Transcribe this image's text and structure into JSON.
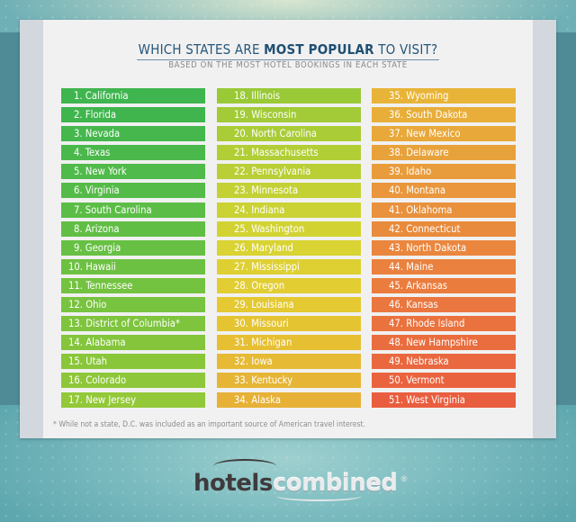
{
  "header": {
    "title_prefix": "WHICH STATES ARE ",
    "title_emphasis": "MOST POPULAR",
    "title_suffix": " TO VISIT?",
    "subtitle": "BASED ON THE MOST HOTEL BOOKINGS IN EACH STATE"
  },
  "columns": [
    {
      "items": [
        {
          "label": "1. California",
          "color": "#3fb54f"
        },
        {
          "label": "2. Florida",
          "color": "#40b54e"
        },
        {
          "label": "3. Nevada",
          "color": "#45b74c"
        },
        {
          "label": "4. Texas",
          "color": "#4ab84b"
        },
        {
          "label": "5. New York",
          "color": "#50ba4a"
        },
        {
          "label": "6. Virginia",
          "color": "#55bb48"
        },
        {
          "label": "7. South Carolina",
          "color": "#5bbd46"
        },
        {
          "label": "8. Arizona",
          "color": "#61be45"
        },
        {
          "label": "9. Georgia",
          "color": "#67c043"
        },
        {
          "label": "10. Hawaii",
          "color": "#6dc142"
        },
        {
          "label": "11. Tennessee",
          "color": "#73c240"
        },
        {
          "label": "12. Ohio",
          "color": "#78c33f"
        },
        {
          "label": "13. District of Columbia*",
          "color": "#7ec43d"
        },
        {
          "label": "14. Alabama",
          "color": "#84c53c"
        },
        {
          "label": "15. Utah",
          "color": "#89c63a"
        },
        {
          "label": "16. Colorado",
          "color": "#8ec739"
        },
        {
          "label": "17. New Jersey",
          "color": "#93c838"
        }
      ]
    },
    {
      "items": [
        {
          "label": "18. Illinois",
          "color": "#9ac937"
        },
        {
          "label": "19. Wisconsin",
          "color": "#a2cb37"
        },
        {
          "label": "20. North Carolina",
          "color": "#aacc36"
        },
        {
          "label": "21. Massachusetts",
          "color": "#b2ce36"
        },
        {
          "label": "22. Pennsylvania",
          "color": "#bacf35"
        },
        {
          "label": "23. Minnesota",
          "color": "#c3d135"
        },
        {
          "label": "24. Indiana",
          "color": "#cad234"
        },
        {
          "label": "25. Washington",
          "color": "#d2d333"
        },
        {
          "label": "26. Maryland",
          "color": "#d9d333"
        },
        {
          "label": "27. Mississippi",
          "color": "#ded032"
        },
        {
          "label": "28. Oregon",
          "color": "#e2cd32"
        },
        {
          "label": "29. Louisiana",
          "color": "#e4c932"
        },
        {
          "label": "30. Missouri",
          "color": "#e5c432"
        },
        {
          "label": "31. Michigan",
          "color": "#e6bf33"
        },
        {
          "label": "32. Iowa",
          "color": "#e6ba34"
        },
        {
          "label": "33. Kentucky",
          "color": "#e6b535"
        },
        {
          "label": "34. Alaska",
          "color": "#e6b136"
        }
      ]
    },
    {
      "items": [
        {
          "label": "35. Wyoming",
          "color": "#e8b438"
        },
        {
          "label": "36. South Dakota",
          "color": "#e8ae39"
        },
        {
          "label": "37. New Mexico",
          "color": "#e8a83a"
        },
        {
          "label": "38. Delaware",
          "color": "#e8a23b"
        },
        {
          "label": "39. Idaho",
          "color": "#e99c3c"
        },
        {
          "label": "40. Montana",
          "color": "#e9963c"
        },
        {
          "label": "41. Oklahoma",
          "color": "#e9913d"
        },
        {
          "label": "42. Connecticut",
          "color": "#e98b3d"
        },
        {
          "label": "43. North Dakota",
          "color": "#ea863e"
        },
        {
          "label": "44. Maine",
          "color": "#ea813e"
        },
        {
          "label": "45. Arkansas",
          "color": "#ea7c3e"
        },
        {
          "label": "46. Kansas",
          "color": "#ea773f"
        },
        {
          "label": "47. Rhode Island",
          "color": "#ea723f"
        },
        {
          "label": "48. New Hampshire",
          "color": "#ea6d3f"
        },
        {
          "label": "49. Nebraska",
          "color": "#ea683f"
        },
        {
          "label": "50. Vermont",
          "color": "#ea633f"
        },
        {
          "label": "51. West Virginia",
          "color": "#e95e3f"
        }
      ]
    }
  ],
  "footnote": "* While not a state, D.C. was included as an important source of American travel interest.",
  "logo": {
    "part1": "hotels",
    "part2": "combined",
    "mark": "®"
  }
}
